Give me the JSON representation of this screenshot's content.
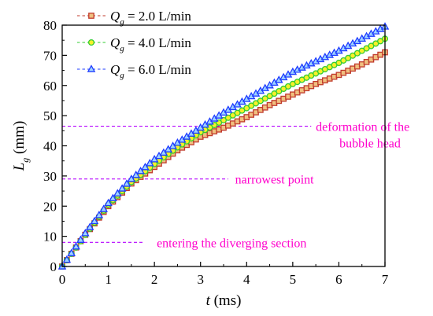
{
  "chart_data": {
    "type": "scatter",
    "xlim": [
      0,
      7
    ],
    "ylim": [
      0,
      80
    ],
    "xticks": [
      0,
      1,
      2,
      3,
      4,
      5,
      6,
      7
    ],
    "yticks": [
      0,
      10,
      20,
      30,
      40,
      50,
      60,
      70,
      80
    ],
    "xlabel": {
      "italic": "t",
      "rest": " (ms)"
    },
    "ylabel": {
      "italic": "L",
      "sub": "g",
      "rest": " (mm)"
    },
    "grid": false,
    "legend_position": "top-left",
    "series": [
      {
        "name": "Q_g = 2.0 L/min",
        "legend": {
          "italic": "Q",
          "sub": "g",
          "rest": " = 2.0 L/min"
        },
        "marker": "square",
        "color": "#c0392b",
        "fill": "#f0c080",
        "dt": 0.1,
        "points": [
          [
            0.0,
            0.0
          ],
          [
            0.5,
            10.5
          ],
          [
            1.0,
            20.0
          ],
          [
            1.5,
            27.5
          ],
          [
            2.0,
            33.0
          ],
          [
            2.5,
            38.5
          ],
          [
            3.0,
            43.0
          ],
          [
            3.5,
            46.0
          ],
          [
            4.0,
            49.5
          ],
          [
            4.5,
            53.5
          ],
          [
            5.0,
            57.0
          ],
          [
            5.5,
            60.5
          ],
          [
            6.0,
            63.5
          ],
          [
            6.5,
            67.0
          ],
          [
            7.0,
            71.0
          ]
        ]
      },
      {
        "name": "Q_g = 4.0 L/min",
        "legend": {
          "italic": "Q",
          "sub": "g",
          "rest": " = 4.0 L/min"
        },
        "marker": "circle",
        "color": "#33cc33",
        "fill": "#f7f02a",
        "dt": 0.1,
        "points": [
          [
            0.0,
            0.0
          ],
          [
            0.5,
            10.5
          ],
          [
            1.0,
            20.5
          ],
          [
            1.5,
            28.0
          ],
          [
            2.0,
            34.0
          ],
          [
            2.5,
            39.5
          ],
          [
            3.0,
            44.5
          ],
          [
            3.5,
            48.5
          ],
          [
            4.0,
            52.5
          ],
          [
            4.5,
            56.5
          ],
          [
            5.0,
            60.5
          ],
          [
            5.5,
            64.0
          ],
          [
            6.0,
            67.5
          ],
          [
            6.5,
            71.5
          ],
          [
            7.0,
            75.5
          ]
        ]
      },
      {
        "name": "Q_g = 6.0 L/min",
        "legend": {
          "italic": "Q",
          "sub": "g",
          "rest": " = 6.0 L/min"
        },
        "marker": "triangle",
        "color": "#1f3cff",
        "fill": "#9fd4ff",
        "dt": 0.1,
        "points": [
          [
            0.0,
            0.0
          ],
          [
            0.5,
            11.0
          ],
          [
            1.0,
            21.0
          ],
          [
            1.5,
            29.0
          ],
          [
            2.0,
            35.5
          ],
          [
            2.5,
            41.0
          ],
          [
            3.0,
            46.0
          ],
          [
            3.5,
            51.0
          ],
          [
            4.0,
            55.5
          ],
          [
            4.5,
            60.0
          ],
          [
            5.0,
            64.5
          ],
          [
            5.5,
            68.0
          ],
          [
            6.0,
            71.5
          ],
          [
            6.5,
            75.5
          ],
          [
            7.0,
            79.5
          ]
        ]
      }
    ],
    "annotations": [
      {
        "y": 46.5,
        "x_start": 0.0,
        "x_end": 5.4,
        "color": "#b400ff",
        "lines": [
          "deformation of the",
          "bubble head"
        ],
        "label_x": 5.5,
        "align": "start"
      },
      {
        "y": 29.0,
        "x_start": 0.0,
        "x_end": 3.6,
        "color": "#b400ff",
        "lines": [
          "narrowest point"
        ],
        "label_x": 3.75,
        "align": "start"
      },
      {
        "y": 8.0,
        "x_start": 0.0,
        "x_end": 1.75,
        "color": "#b400ff",
        "lines": [
          "entering the diverging section"
        ],
        "label_x": 2.05,
        "align": "start"
      }
    ],
    "annotation_text_color": "#ff00cc"
  }
}
